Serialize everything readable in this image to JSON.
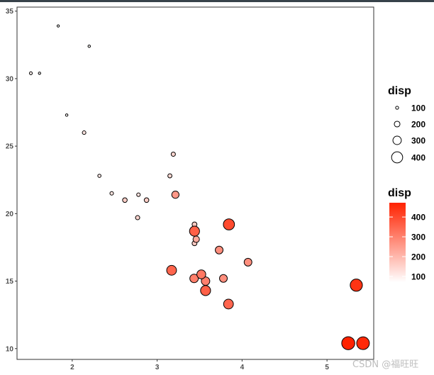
{
  "chart_data": {
    "type": "scatter",
    "title": "",
    "xlabel": "",
    "ylabel": "",
    "xlim": [
      1.35,
      5.55
    ],
    "ylim": [
      9.2,
      35.3
    ],
    "x_ticks": [
      2,
      3,
      4,
      5
    ],
    "y_ticks": [
      10,
      15,
      20,
      25,
      30,
      35
    ],
    "grid": false,
    "size_by": "disp",
    "color_by": "disp",
    "color_scale": {
      "low": "#ffffff",
      "high": "#ff2200",
      "min": 71.1,
      "max": 472
    },
    "points": [
      {
        "x": 2.62,
        "y": 21.0,
        "disp": 160.0
      },
      {
        "x": 2.875,
        "y": 21.0,
        "disp": 160.0
      },
      {
        "x": 2.32,
        "y": 22.8,
        "disp": 108.0
      },
      {
        "x": 3.215,
        "y": 21.4,
        "disp": 258.0
      },
      {
        "x": 3.44,
        "y": 18.7,
        "disp": 360.0
      },
      {
        "x": 3.46,
        "y": 18.1,
        "disp": 225.0
      },
      {
        "x": 3.57,
        "y": 14.3,
        "disp": 360.0
      },
      {
        "x": 3.19,
        "y": 24.4,
        "disp": 146.7
      },
      {
        "x": 3.15,
        "y": 22.8,
        "disp": 140.8
      },
      {
        "x": 3.44,
        "y": 19.2,
        "disp": 167.6
      },
      {
        "x": 3.44,
        "y": 17.8,
        "disp": 167.6
      },
      {
        "x": 4.07,
        "y": 16.4,
        "disp": 275.8
      },
      {
        "x": 3.73,
        "y": 17.3,
        "disp": 275.8
      },
      {
        "x": 3.78,
        "y": 15.2,
        "disp": 275.8
      },
      {
        "x": 5.25,
        "y": 10.4,
        "disp": 472.0
      },
      {
        "x": 5.424,
        "y": 10.4,
        "disp": 460.0
      },
      {
        "x": 5.345,
        "y": 14.7,
        "disp": 440.0
      },
      {
        "x": 2.2,
        "y": 32.4,
        "disp": 78.7
      },
      {
        "x": 1.615,
        "y": 30.4,
        "disp": 75.7
      },
      {
        "x": 1.835,
        "y": 33.9,
        "disp": 71.1
      },
      {
        "x": 2.465,
        "y": 21.5,
        "disp": 120.1
      },
      {
        "x": 3.52,
        "y": 15.5,
        "disp": 318.0
      },
      {
        "x": 3.435,
        "y": 15.2,
        "disp": 304.0
      },
      {
        "x": 3.84,
        "y": 13.3,
        "disp": 350.0
      },
      {
        "x": 3.845,
        "y": 19.2,
        "disp": 400.0
      },
      {
        "x": 1.935,
        "y": 27.3,
        "disp": 79.0
      },
      {
        "x": 2.14,
        "y": 26.0,
        "disp": 120.3
      },
      {
        "x": 1.513,
        "y": 30.4,
        "disp": 95.1
      },
      {
        "x": 3.17,
        "y": 15.8,
        "disp": 351.0
      },
      {
        "x": 2.77,
        "y": 19.7,
        "disp": 145.0
      },
      {
        "x": 3.57,
        "y": 15.0,
        "disp": 301.0
      },
      {
        "x": 2.78,
        "y": 21.4,
        "disp": 121.0
      }
    ],
    "legends": {
      "size": {
        "title": "disp",
        "breaks": [
          100,
          200,
          300,
          400
        ]
      },
      "color": {
        "title": "disp",
        "breaks": [
          100,
          200,
          300,
          400
        ]
      }
    }
  },
  "watermark": "CSDN @福旺旺"
}
